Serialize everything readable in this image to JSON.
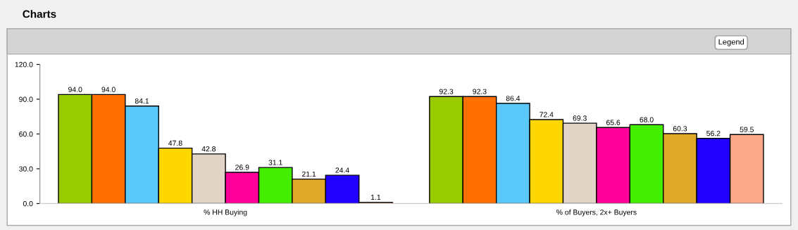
{
  "chart_data": {
    "type": "bar",
    "title": "Charts",
    "annotations": [
      "Legend"
    ],
    "categories": [
      "% HH Buying",
      "% of Buyers, 2x+ Buyers"
    ],
    "series": [
      {
        "color": "#99cc00",
        "values": [
          94.0,
          92.3
        ],
        "value_labels": [
          "94.0",
          "92.3"
        ]
      },
      {
        "color": "#ff7000",
        "values": [
          94.0,
          92.3
        ],
        "value_labels": [
          "94.0",
          "92.3"
        ]
      },
      {
        "color": "#5bc8fa",
        "values": [
          84.1,
          86.4
        ],
        "value_labels": [
          "84.1",
          "86.4"
        ]
      },
      {
        "color": "#ffd700",
        "values": [
          47.8,
          72.4
        ],
        "value_labels": [
          "47.8",
          "72.4"
        ]
      },
      {
        "color": "#e2d5c8",
        "values": [
          42.8,
          69.3
        ],
        "value_labels": [
          "42.8",
          "69.3"
        ]
      },
      {
        "color": "#ff0099",
        "values": [
          26.9,
          65.6
        ],
        "value_labels": [
          "26.9",
          "65.6"
        ]
      },
      {
        "color": "#44ee00",
        "values": [
          31.1,
          68.0
        ],
        "value_labels": [
          "31.1",
          "68.0"
        ]
      },
      {
        "color": "#e0a92a",
        "values": [
          21.1,
          60.3
        ],
        "value_labels": [
          "21.1",
          "60.3"
        ]
      },
      {
        "color": "#2200ff",
        "values": [
          24.4,
          56.2
        ],
        "value_labels": [
          "24.4",
          "56.2"
        ]
      },
      {
        "color": "#f9a889",
        "values": [
          1.1,
          59.5
        ],
        "value_labels": [
          "1.1",
          "59.5"
        ]
      }
    ],
    "ylim": [
      0,
      120
    ],
    "yticks": [
      {
        "value": 0,
        "label": "0.0"
      },
      {
        "value": 30,
        "label": "30.0"
      },
      {
        "value": 60,
        "label": "60.0"
      },
      {
        "value": 90,
        "label": "90.0"
      },
      {
        "value": 120,
        "label": "120.0"
      }
    ],
    "grid": false,
    "legend": false
  }
}
